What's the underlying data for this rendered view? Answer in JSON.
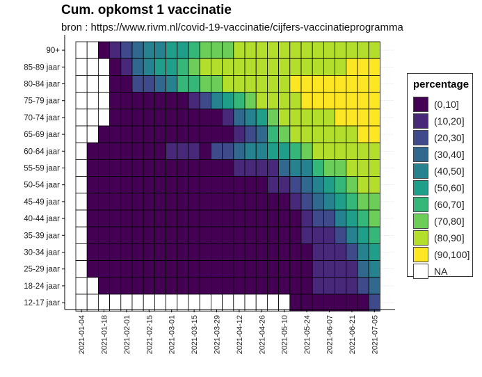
{
  "header": {
    "title": "Cum. opkomst 1 vaccinatie",
    "subtitle": "bron : https://www.rivm.nl/covid-19-vaccinatie/cijfers-vaccinatieprogramma"
  },
  "legend": {
    "title": "percentage",
    "items": [
      {
        "label": "(0,10]",
        "color": "#440154"
      },
      {
        "label": "(10,20]",
        "color": "#482878"
      },
      {
        "label": "(20,30]",
        "color": "#3E4A89"
      },
      {
        "label": "(30,40]",
        "color": "#31688E"
      },
      {
        "label": "(40,50]",
        "color": "#26828E"
      },
      {
        "label": "(50,60]",
        "color": "#1F9E89"
      },
      {
        "label": "(60,70]",
        "color": "#35B779"
      },
      {
        "label": "(70,80]",
        "color": "#6DCD59"
      },
      {
        "label": "(80,90]",
        "color": "#B4DE2C"
      },
      {
        "label": "(90,100]",
        "color": "#FDE725"
      },
      {
        "label": "NA",
        "color": "#FFFFFF"
      }
    ]
  },
  "chart_data": {
    "type": "heatmap",
    "title": "Cum. opkomst 1 vaccinatie",
    "subtitle": "bron : https://www.rivm.nl/covid-19-vaccinatie/cijfers-vaccinatieprogramma",
    "legend_title": "percentage",
    "legend_position": "right",
    "x_tick_labels": [
      "2021-01-04",
      "2021-01-18",
      "2021-02-01",
      "2021-02-15",
      "2021-03-01",
      "2021-03-15",
      "2021-03-29",
      "2021-04-12",
      "2021-04-26",
      "2021-05-10",
      "2021-05-24",
      "2021-06-07",
      "2021-06-21",
      "2021-07-05"
    ],
    "x_start": "2021-01-04",
    "week_count": 27,
    "y_categories": [
      "90+",
      "85-89 jaar",
      "80-84 jaar",
      "75-79 jaar",
      "70-74 jaar",
      "65-69 jaar",
      "60-64 jaar",
      "55-59 jaar",
      "50-54 jaar",
      "45-49 jaar",
      "40-44 jaar",
      "35-39 jaar",
      "30-34 jaar",
      "25-29 jaar",
      "18-24 jaar",
      "12-17 jaar"
    ],
    "value_encoding": "bin index 1=(0,10] ... 10=(90,100], 0=NA",
    "rows": [
      [
        0,
        0,
        1,
        2,
        3,
        4,
        5,
        5,
        6,
        6,
        7,
        8,
        8,
        8,
        9,
        9,
        9,
        9,
        9,
        9,
        9,
        9,
        9,
        9,
        9,
        9,
        9
      ],
      [
        0,
        0,
        0,
        1,
        2,
        4,
        5,
        6,
        6,
        7,
        8,
        9,
        9,
        9,
        9,
        9,
        9,
        9,
        9,
        9,
        9,
        9,
        9,
        9,
        10,
        10,
        10
      ],
      [
        0,
        0,
        0,
        1,
        1,
        3,
        3,
        4,
        5,
        7,
        7,
        8,
        8,
        9,
        9,
        9,
        9,
        9,
        9,
        10,
        10,
        10,
        10,
        10,
        10,
        10,
        10
      ],
      [
        0,
        0,
        0,
        1,
        1,
        1,
        1,
        1,
        1,
        1,
        2,
        3,
        5,
        6,
        7,
        8,
        9,
        9,
        9,
        9,
        10,
        10,
        10,
        10,
        10,
        10,
        10
      ],
      [
        0,
        0,
        0,
        1,
        1,
        1,
        1,
        1,
        1,
        1,
        1,
        1,
        1,
        2,
        4,
        5,
        6,
        8,
        9,
        9,
        9,
        9,
        9,
        10,
        10,
        10,
        10
      ],
      [
        0,
        0,
        1,
        1,
        1,
        1,
        1,
        1,
        1,
        1,
        1,
        1,
        1,
        1,
        2,
        3,
        4,
        7,
        8,
        9,
        9,
        9,
        9,
        9,
        9,
        10,
        10
      ],
      [
        0,
        1,
        1,
        1,
        1,
        1,
        1,
        1,
        2,
        2,
        2,
        1,
        3,
        3,
        4,
        5,
        5,
        6,
        6,
        7,
        8,
        9,
        9,
        9,
        9,
        9,
        9
      ],
      [
        0,
        1,
        1,
        1,
        1,
        1,
        1,
        1,
        1,
        1,
        1,
        1,
        1,
        1,
        2,
        2,
        2,
        2,
        4,
        5,
        5,
        7,
        8,
        8,
        9,
        9,
        9
      ],
      [
        0,
        1,
        1,
        1,
        1,
        1,
        1,
        1,
        1,
        1,
        1,
        1,
        1,
        1,
        1,
        1,
        1,
        2,
        2,
        3,
        4,
        5,
        6,
        7,
        8,
        9,
        9
      ],
      [
        0,
        1,
        1,
        1,
        1,
        1,
        1,
        1,
        1,
        1,
        1,
        1,
        1,
        1,
        1,
        1,
        1,
        1,
        1,
        2,
        3,
        4,
        5,
        6,
        7,
        8,
        8
      ],
      [
        0,
        1,
        1,
        1,
        1,
        1,
        1,
        1,
        1,
        1,
        1,
        1,
        1,
        1,
        1,
        1,
        1,
        1,
        1,
        1,
        2,
        3,
        3,
        5,
        6,
        7,
        8
      ],
      [
        0,
        1,
        1,
        1,
        1,
        1,
        1,
        1,
        1,
        1,
        1,
        1,
        1,
        1,
        1,
        1,
        1,
        1,
        1,
        1,
        2,
        2,
        2,
        3,
        5,
        6,
        7
      ],
      [
        0,
        1,
        1,
        1,
        1,
        1,
        1,
        1,
        1,
        1,
        1,
        1,
        1,
        1,
        1,
        1,
        1,
        1,
        1,
        1,
        1,
        2,
        2,
        2,
        3,
        5,
        6
      ],
      [
        0,
        1,
        1,
        1,
        1,
        1,
        1,
        1,
        1,
        1,
        1,
        1,
        1,
        1,
        1,
        1,
        1,
        1,
        1,
        1,
        1,
        2,
        2,
        2,
        2,
        4,
        5
      ],
      [
        0,
        0,
        1,
        1,
        1,
        1,
        1,
        1,
        1,
        1,
        1,
        1,
        1,
        1,
        1,
        1,
        1,
        1,
        1,
        1,
        1,
        2,
        2,
        2,
        2,
        3,
        4
      ],
      [
        0,
        0,
        0,
        0,
        0,
        0,
        0,
        0,
        0,
        0,
        0,
        0,
        0,
        0,
        0,
        0,
        0,
        0,
        0,
        1,
        1,
        1,
        1,
        1,
        1,
        1,
        3
      ]
    ]
  }
}
